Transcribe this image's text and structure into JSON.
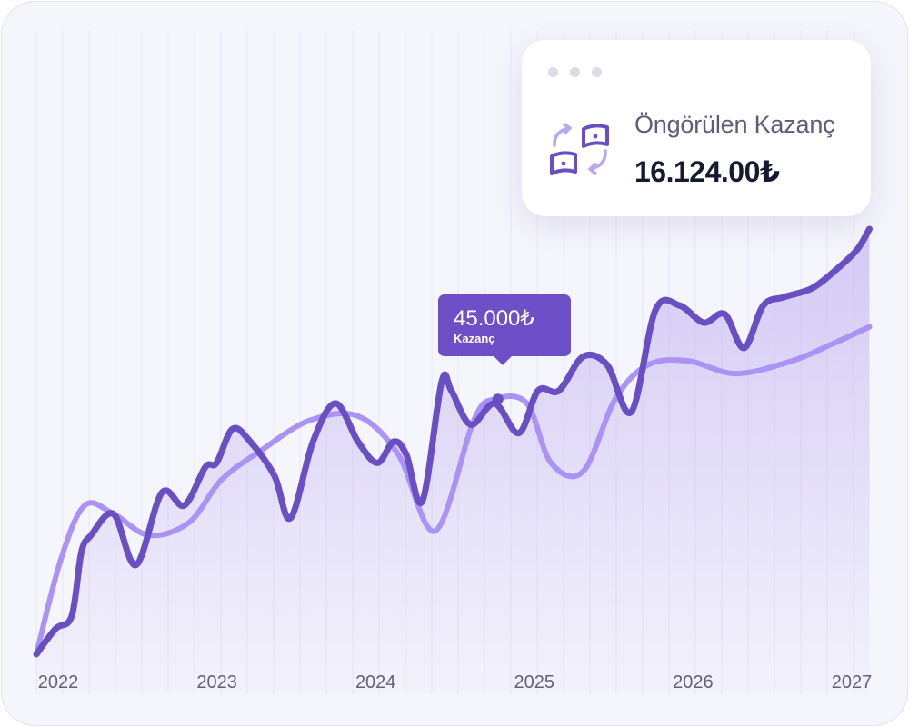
{
  "card": {
    "label": "Öngörülen Kazanç",
    "value": "16.124.00₺",
    "icon": "money-exchange-icon"
  },
  "tooltip": {
    "value": "45.000₺",
    "label": "Kazanç"
  },
  "colors": {
    "primary": "#6a4fc4",
    "secondary": "#ab93f6",
    "background": "#f5f5fc",
    "card_text": "#151a33",
    "card_label": "#5f5c78"
  },
  "chart_data": {
    "type": "line",
    "xlabel": "",
    "ylabel": "",
    "grid": "vertical",
    "x_ticks": [
      "2022",
      "2023",
      "2024",
      "2025",
      "2026",
      "2027"
    ],
    "xlim": [
      2022,
      2027.2
    ],
    "ylim": [
      0,
      100
    ],
    "series": [
      {
        "key": "primary",
        "color": "#6a4fc4",
        "fill": true,
        "points": [
          [
            2022.0,
            0
          ],
          [
            2022.12,
            6
          ],
          [
            2022.22,
            9
          ],
          [
            2022.28,
            24
          ],
          [
            2022.34,
            28
          ],
          [
            2022.48,
            33
          ],
          [
            2022.62,
            21
          ],
          [
            2022.78,
            38
          ],
          [
            2022.92,
            35
          ],
          [
            2023.05,
            44
          ],
          [
            2023.12,
            45
          ],
          [
            2023.22,
            53
          ],
          [
            2023.33,
            50
          ],
          [
            2023.48,
            42
          ],
          [
            2023.58,
            32
          ],
          [
            2023.72,
            50
          ],
          [
            2023.86,
            59
          ],
          [
            2024.0,
            50
          ],
          [
            2024.12,
            45
          ],
          [
            2024.22,
            50
          ],
          [
            2024.3,
            47
          ],
          [
            2024.4,
            36
          ],
          [
            2024.52,
            64
          ],
          [
            2024.58,
            62
          ],
          [
            2024.7,
            54
          ],
          [
            2024.85,
            59
          ],
          [
            2025.0,
            52
          ],
          [
            2025.12,
            62
          ],
          [
            2025.25,
            62
          ],
          [
            2025.4,
            70
          ],
          [
            2025.55,
            68
          ],
          [
            2025.7,
            57
          ],
          [
            2025.85,
            81
          ],
          [
            2026.0,
            82
          ],
          [
            2026.15,
            78
          ],
          [
            2026.28,
            80
          ],
          [
            2026.4,
            72
          ],
          [
            2026.52,
            82
          ],
          [
            2026.65,
            84
          ],
          [
            2026.82,
            86
          ],
          [
            2026.96,
            90
          ],
          [
            2027.1,
            95
          ],
          [
            2027.18,
            100
          ]
        ]
      },
      {
        "key": "secondary",
        "color": "#ab93f6",
        "fill": false,
        "points": [
          [
            2022.0,
            0
          ],
          [
            2022.15,
            22
          ],
          [
            2022.3,
            35
          ],
          [
            2022.48,
            33
          ],
          [
            2022.7,
            28
          ],
          [
            2022.95,
            31
          ],
          [
            2023.15,
            41
          ],
          [
            2023.4,
            48
          ],
          [
            2023.7,
            55
          ],
          [
            2024.0,
            56
          ],
          [
            2024.25,
            47
          ],
          [
            2024.48,
            29
          ],
          [
            2024.72,
            55
          ],
          [
            2024.85,
            60
          ],
          [
            2025.05,
            59
          ],
          [
            2025.2,
            45
          ],
          [
            2025.4,
            43
          ],
          [
            2025.6,
            60
          ],
          [
            2025.8,
            68
          ],
          [
            2026.05,
            69
          ],
          [
            2026.35,
            66
          ],
          [
            2026.7,
            69
          ],
          [
            2026.95,
            73
          ],
          [
            2027.18,
            77
          ]
        ]
      }
    ],
    "annotation": {
      "x": 2024.87,
      "y": 60,
      "label": "45.000₺ Kazanç"
    }
  }
}
